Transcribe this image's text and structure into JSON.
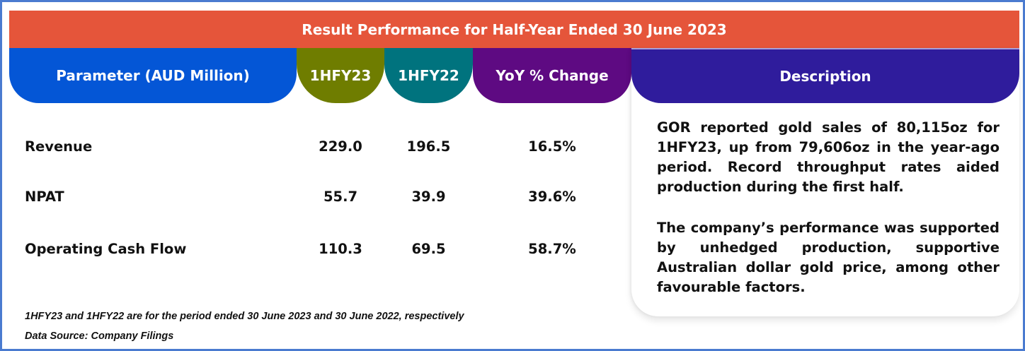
{
  "title": "Result Performance for Half-Year Ended 30 June 2023",
  "colors": {
    "frame_border": "#4a7bd0",
    "title_bar": "#e5553a",
    "parameter_header": "#0456d6",
    "h23_header": "#6f7d00",
    "h22_header": "#00737e",
    "yoy_header": "#5e0a82",
    "description_header": "#2f1c9c"
  },
  "table": {
    "headers": {
      "parameter": "Parameter (AUD Million)",
      "h23": "1HFY23",
      "h22": "1HFY22",
      "yoy": "YoY % Change",
      "description": "Description"
    },
    "rows": [
      {
        "parameter": "Revenue",
        "h23": "229.0",
        "h22": "196.5",
        "yoy": "16.5%"
      },
      {
        "parameter": "NPAT",
        "h23": "55.7",
        "h22": "39.9",
        "yoy": "39.6%"
      },
      {
        "parameter": "Operating Cash Flow",
        "h23": "110.3",
        "h22": "69.5",
        "yoy": "58.7%"
      }
    ]
  },
  "description": {
    "paragraphs": [
      "GOR reported gold sales of 80,115oz for 1HFY23, up from 79,606oz in the year-ago period. Record throughput rates aided production during the first half.",
      "The company’s performance was supported by unhedged production, supportive Australian dollar gold price, among other favourable factors."
    ]
  },
  "footnotes": {
    "period_note": "1HFY23 and 1HFY22 are for the period ended 30 June 2023 and 30 June 2022, respectively",
    "source": "Data Source: Company Filings"
  }
}
